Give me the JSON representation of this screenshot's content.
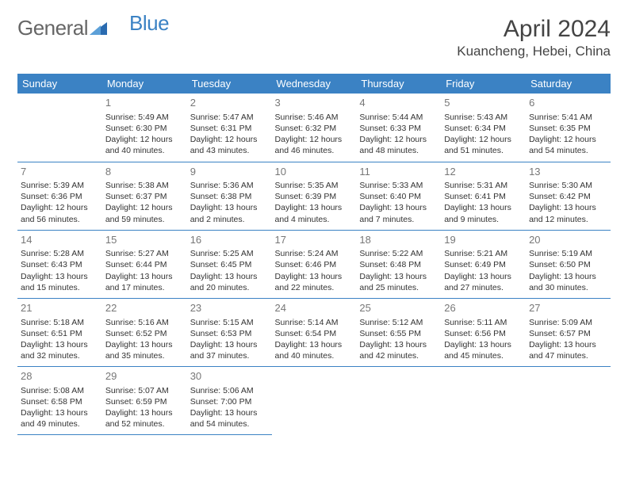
{
  "logo": {
    "text1": "General",
    "text2": "Blue"
  },
  "title": "April 2024",
  "location": "Kuancheng, Hebei, China",
  "colors": {
    "header_bg": "#3b82c4",
    "header_text": "#ffffff",
    "border": "#3b82c4",
    "daynum": "#777777",
    "body_text": "#333333",
    "title_text": "#444444",
    "background": "#ffffff"
  },
  "day_headers": [
    "Sunday",
    "Monday",
    "Tuesday",
    "Wednesday",
    "Thursday",
    "Friday",
    "Saturday"
  ],
  "weeks": [
    [
      {
        "num": "",
        "lines": [
          "",
          "",
          "",
          ""
        ]
      },
      {
        "num": "1",
        "lines": [
          "Sunrise: 5:49 AM",
          "Sunset: 6:30 PM",
          "Daylight: 12 hours",
          "and 40 minutes."
        ]
      },
      {
        "num": "2",
        "lines": [
          "Sunrise: 5:47 AM",
          "Sunset: 6:31 PM",
          "Daylight: 12 hours",
          "and 43 minutes."
        ]
      },
      {
        "num": "3",
        "lines": [
          "Sunrise: 5:46 AM",
          "Sunset: 6:32 PM",
          "Daylight: 12 hours",
          "and 46 minutes."
        ]
      },
      {
        "num": "4",
        "lines": [
          "Sunrise: 5:44 AM",
          "Sunset: 6:33 PM",
          "Daylight: 12 hours",
          "and 48 minutes."
        ]
      },
      {
        "num": "5",
        "lines": [
          "Sunrise: 5:43 AM",
          "Sunset: 6:34 PM",
          "Daylight: 12 hours",
          "and 51 minutes."
        ]
      },
      {
        "num": "6",
        "lines": [
          "Sunrise: 5:41 AM",
          "Sunset: 6:35 PM",
          "Daylight: 12 hours",
          "and 54 minutes."
        ]
      }
    ],
    [
      {
        "num": "7",
        "lines": [
          "Sunrise: 5:39 AM",
          "Sunset: 6:36 PM",
          "Daylight: 12 hours",
          "and 56 minutes."
        ]
      },
      {
        "num": "8",
        "lines": [
          "Sunrise: 5:38 AM",
          "Sunset: 6:37 PM",
          "Daylight: 12 hours",
          "and 59 minutes."
        ]
      },
      {
        "num": "9",
        "lines": [
          "Sunrise: 5:36 AM",
          "Sunset: 6:38 PM",
          "Daylight: 13 hours",
          "and 2 minutes."
        ]
      },
      {
        "num": "10",
        "lines": [
          "Sunrise: 5:35 AM",
          "Sunset: 6:39 PM",
          "Daylight: 13 hours",
          "and 4 minutes."
        ]
      },
      {
        "num": "11",
        "lines": [
          "Sunrise: 5:33 AM",
          "Sunset: 6:40 PM",
          "Daylight: 13 hours",
          "and 7 minutes."
        ]
      },
      {
        "num": "12",
        "lines": [
          "Sunrise: 5:31 AM",
          "Sunset: 6:41 PM",
          "Daylight: 13 hours",
          "and 9 minutes."
        ]
      },
      {
        "num": "13",
        "lines": [
          "Sunrise: 5:30 AM",
          "Sunset: 6:42 PM",
          "Daylight: 13 hours",
          "and 12 minutes."
        ]
      }
    ],
    [
      {
        "num": "14",
        "lines": [
          "Sunrise: 5:28 AM",
          "Sunset: 6:43 PM",
          "Daylight: 13 hours",
          "and 15 minutes."
        ]
      },
      {
        "num": "15",
        "lines": [
          "Sunrise: 5:27 AM",
          "Sunset: 6:44 PM",
          "Daylight: 13 hours",
          "and 17 minutes."
        ]
      },
      {
        "num": "16",
        "lines": [
          "Sunrise: 5:25 AM",
          "Sunset: 6:45 PM",
          "Daylight: 13 hours",
          "and 20 minutes."
        ]
      },
      {
        "num": "17",
        "lines": [
          "Sunrise: 5:24 AM",
          "Sunset: 6:46 PM",
          "Daylight: 13 hours",
          "and 22 minutes."
        ]
      },
      {
        "num": "18",
        "lines": [
          "Sunrise: 5:22 AM",
          "Sunset: 6:48 PM",
          "Daylight: 13 hours",
          "and 25 minutes."
        ]
      },
      {
        "num": "19",
        "lines": [
          "Sunrise: 5:21 AM",
          "Sunset: 6:49 PM",
          "Daylight: 13 hours",
          "and 27 minutes."
        ]
      },
      {
        "num": "20",
        "lines": [
          "Sunrise: 5:19 AM",
          "Sunset: 6:50 PM",
          "Daylight: 13 hours",
          "and 30 minutes."
        ]
      }
    ],
    [
      {
        "num": "21",
        "lines": [
          "Sunrise: 5:18 AM",
          "Sunset: 6:51 PM",
          "Daylight: 13 hours",
          "and 32 minutes."
        ]
      },
      {
        "num": "22",
        "lines": [
          "Sunrise: 5:16 AM",
          "Sunset: 6:52 PM",
          "Daylight: 13 hours",
          "and 35 minutes."
        ]
      },
      {
        "num": "23",
        "lines": [
          "Sunrise: 5:15 AM",
          "Sunset: 6:53 PM",
          "Daylight: 13 hours",
          "and 37 minutes."
        ]
      },
      {
        "num": "24",
        "lines": [
          "Sunrise: 5:14 AM",
          "Sunset: 6:54 PM",
          "Daylight: 13 hours",
          "and 40 minutes."
        ]
      },
      {
        "num": "25",
        "lines": [
          "Sunrise: 5:12 AM",
          "Sunset: 6:55 PM",
          "Daylight: 13 hours",
          "and 42 minutes."
        ]
      },
      {
        "num": "26",
        "lines": [
          "Sunrise: 5:11 AM",
          "Sunset: 6:56 PM",
          "Daylight: 13 hours",
          "and 45 minutes."
        ]
      },
      {
        "num": "27",
        "lines": [
          "Sunrise: 5:09 AM",
          "Sunset: 6:57 PM",
          "Daylight: 13 hours",
          "and 47 minutes."
        ]
      }
    ],
    [
      {
        "num": "28",
        "lines": [
          "Sunrise: 5:08 AM",
          "Sunset: 6:58 PM",
          "Daylight: 13 hours",
          "and 49 minutes."
        ]
      },
      {
        "num": "29",
        "lines": [
          "Sunrise: 5:07 AM",
          "Sunset: 6:59 PM",
          "Daylight: 13 hours",
          "and 52 minutes."
        ]
      },
      {
        "num": "30",
        "lines": [
          "Sunrise: 5:06 AM",
          "Sunset: 7:00 PM",
          "Daylight: 13 hours",
          "and 54 minutes."
        ]
      },
      {
        "num": "",
        "lines": [
          "",
          "",
          "",
          ""
        ]
      },
      {
        "num": "",
        "lines": [
          "",
          "",
          "",
          ""
        ]
      },
      {
        "num": "",
        "lines": [
          "",
          "",
          "",
          ""
        ]
      },
      {
        "num": "",
        "lines": [
          "",
          "",
          "",
          ""
        ]
      }
    ]
  ]
}
